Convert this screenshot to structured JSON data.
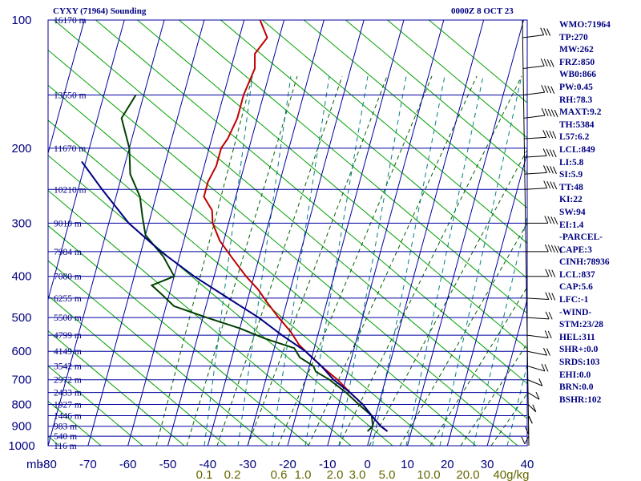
{
  "header": {
    "title": "CYXY (71964) Sounding",
    "time": "0000Z  8 OCT 23"
  },
  "indices": [
    "WMO:71964",
    "TP:270",
    "MW:262",
    "FRZ:850",
    "WB0:866",
    "PW:0.45",
    "RH:78.3",
    "MAXT:9.2",
    "TH:5384",
    "L57:6.2",
    "LCL:849",
    "LI:5.8",
    "SI:5.9",
    "TT:48",
    "KI:22",
    "SW:94",
    "EI:1.4",
    "-PARCEL-",
    "CAPE:3",
    "CINH:78936",
    "LCL:837",
    "CAP:5.6",
    "LFC:-1",
    "-WIND-",
    "STM:23/28",
    "HEL:311",
    "SHR+:0.0",
    "SRDS:103",
    "EHI:0.0",
    "BRN:0.0",
    "BSHR:102"
  ],
  "chart_data": {
    "type": "line",
    "pressure_axis": {
      "label": "mb",
      "ticks": [
        100,
        200,
        300,
        400,
        500,
        600,
        700,
        800,
        900,
        1000
      ],
      "range": [
        100,
        1000
      ],
      "log": true
    },
    "temperature_axis": {
      "ticks": [
        -80,
        -70,
        -60,
        -50,
        -40,
        -30,
        -20,
        -10,
        0,
        10,
        20,
        30,
        40
      ],
      "tick_labels": [
        "-80",
        "-70",
        "-60",
        "-50",
        "-40",
        "-30",
        "-20",
        "-10",
        "0",
        "10",
        "20",
        "30",
        "40"
      ],
      "range": [
        -80,
        40
      ],
      "skewed": true
    },
    "mixing_ratio_labels": [
      {
        "label": "0.1",
        "value": 0.1
      },
      {
        "label": "0.2",
        "value": 0.2
      },
      {
        "label": "0.6",
        "value": 0.6
      },
      {
        "label": "1.0",
        "value": 1.0
      },
      {
        "label": "2.0",
        "value": 2.0
      },
      {
        "label": "3.0",
        "value": 3.0
      },
      {
        "label": "5.0",
        "value": 5.0
      },
      {
        "label": "10.0",
        "value": 10.0
      },
      {
        "label": "20.0",
        "value": 20.0
      },
      {
        "label": "40g/kg",
        "value": 40.0
      }
    ],
    "height_labels": [
      {
        "p": 100,
        "text": "16170 m"
      },
      {
        "p": 150,
        "text": "13550 m"
      },
      {
        "p": 200,
        "text": "11670 m"
      },
      {
        "p": 250,
        "text": "10210 m"
      },
      {
        "p": 300,
        "text": "9010 m"
      },
      {
        "p": 350,
        "text": "7984 m"
      },
      {
        "p": 400,
        "text": "7080 m"
      },
      {
        "p": 450,
        "text": "6255 m"
      },
      {
        "p": 500,
        "text": "5500 m"
      },
      {
        "p": 550,
        "text": "4799 m"
      },
      {
        "p": 600,
        "text": "4149 m"
      },
      {
        "p": 650,
        "text": "3542 m"
      },
      {
        "p": 700,
        "text": "2972 m"
      },
      {
        "p": 750,
        "text": "2433 m"
      },
      {
        "p": 800,
        "text": "1927 m"
      },
      {
        "p": 850,
        "text": "1446 m"
      },
      {
        "p": 900,
        "text": "983 m"
      },
      {
        "p": 950,
        "text": "540 m"
      },
      {
        "p": 1000,
        "text": "116 m"
      }
    ],
    "series": [
      {
        "color": "#c00000",
        "points": [
          [
            100,
            -56
          ],
          [
            110,
            -53
          ],
          [
            120,
            -55
          ],
          [
            130,
            -54
          ],
          [
            150,
            -55
          ],
          [
            170,
            -55
          ],
          [
            190,
            -56
          ],
          [
            200,
            -57
          ],
          [
            220,
            -57
          ],
          [
            240,
            -58
          ],
          [
            260,
            -58
          ],
          [
            280,
            -55
          ],
          [
            300,
            -54
          ],
          [
            330,
            -51
          ],
          [
            360,
            -47
          ],
          [
            400,
            -42
          ],
          [
            430,
            -38
          ],
          [
            460,
            -35
          ],
          [
            500,
            -31
          ],
          [
            540,
            -27
          ],
          [
            580,
            -24
          ],
          [
            620,
            -20
          ],
          [
            660,
            -16
          ],
          [
            700,
            -12
          ],
          [
            750,
            -8
          ],
          [
            800,
            -4
          ],
          [
            850,
            -1
          ],
          [
            900,
            2
          ],
          [
            925,
            4
          ]
        ]
      },
      {
        "color": "#004000",
        "points": [
          [
            150,
            -82
          ],
          [
            170,
            -84
          ],
          [
            200,
            -80
          ],
          [
            230,
            -78
          ],
          [
            260,
            -74
          ],
          [
            290,
            -72
          ],
          [
            320,
            -70
          ],
          [
            360,
            -64
          ],
          [
            400,
            -60
          ],
          [
            420,
            -65
          ],
          [
            440,
            -62
          ],
          [
            470,
            -58
          ],
          [
            500,
            -49
          ],
          [
            530,
            -40
          ],
          [
            560,
            -33
          ],
          [
            590,
            -25
          ],
          [
            620,
            -23
          ],
          [
            650,
            -19
          ],
          [
            670,
            -18
          ],
          [
            700,
            -14
          ],
          [
            750,
            -9
          ],
          [
            800,
            -5
          ],
          [
            850,
            -1
          ],
          [
            900,
            0
          ],
          [
            925,
            -1
          ]
        ]
      },
      {
        "color": "#000080",
        "points": [
          [
            925,
            4
          ],
          [
            900,
            2
          ],
          [
            850,
            -1
          ],
          [
            800,
            -4
          ],
          [
            750,
            -8
          ],
          [
            700,
            -13
          ],
          [
            650,
            -17
          ],
          [
            600,
            -22
          ],
          [
            550,
            -29
          ],
          [
            500,
            -36
          ],
          [
            450,
            -45
          ],
          [
            400,
            -55
          ],
          [
            350,
            -65
          ],
          [
            300,
            -75
          ],
          [
            250,
            -84
          ],
          [
            215,
            -91
          ]
        ]
      }
    ],
    "wind_profile": [
      {
        "p": 110,
        "dir": 290,
        "spd": 30
      },
      {
        "p": 130,
        "dir": 290,
        "spd": 35
      },
      {
        "p": 150,
        "dir": 290,
        "spd": 40
      },
      {
        "p": 170,
        "dir": 290,
        "spd": 45
      },
      {
        "p": 190,
        "dir": 280,
        "spd": 40
      },
      {
        "p": 210,
        "dir": 280,
        "spd": 40
      },
      {
        "p": 230,
        "dir": 280,
        "spd": 35
      },
      {
        "p": 250,
        "dir": 280,
        "spd": 35
      },
      {
        "p": 300,
        "dir": 270,
        "spd": 40
      },
      {
        "p": 350,
        "dir": 270,
        "spd": 45
      },
      {
        "p": 400,
        "dir": 270,
        "spd": 30
      },
      {
        "p": 450,
        "dir": 260,
        "spd": 25
      },
      {
        "p": 500,
        "dir": 260,
        "spd": 20
      },
      {
        "p": 550,
        "dir": 250,
        "spd": 20
      },
      {
        "p": 600,
        "dir": 240,
        "spd": 15
      },
      {
        "p": 650,
        "dir": 230,
        "spd": 15
      },
      {
        "p": 700,
        "dir": 220,
        "spd": 10
      },
      {
        "p": 750,
        "dir": 210,
        "spd": 10
      },
      {
        "p": 800,
        "dir": 200,
        "spd": 10
      },
      {
        "p": 850,
        "dir": 190,
        "spd": 5
      },
      {
        "p": 900,
        "dir": 180,
        "spd": 5
      },
      {
        "p": 950,
        "dir": 170,
        "spd": 5
      }
    ],
    "colors": {
      "grid": "#0000a0",
      "dry_adiabat": "#00a000",
      "moist_adiabat": "#006000",
      "mixing_ratio": "#008080",
      "mixing_label": "#666600"
    }
  }
}
